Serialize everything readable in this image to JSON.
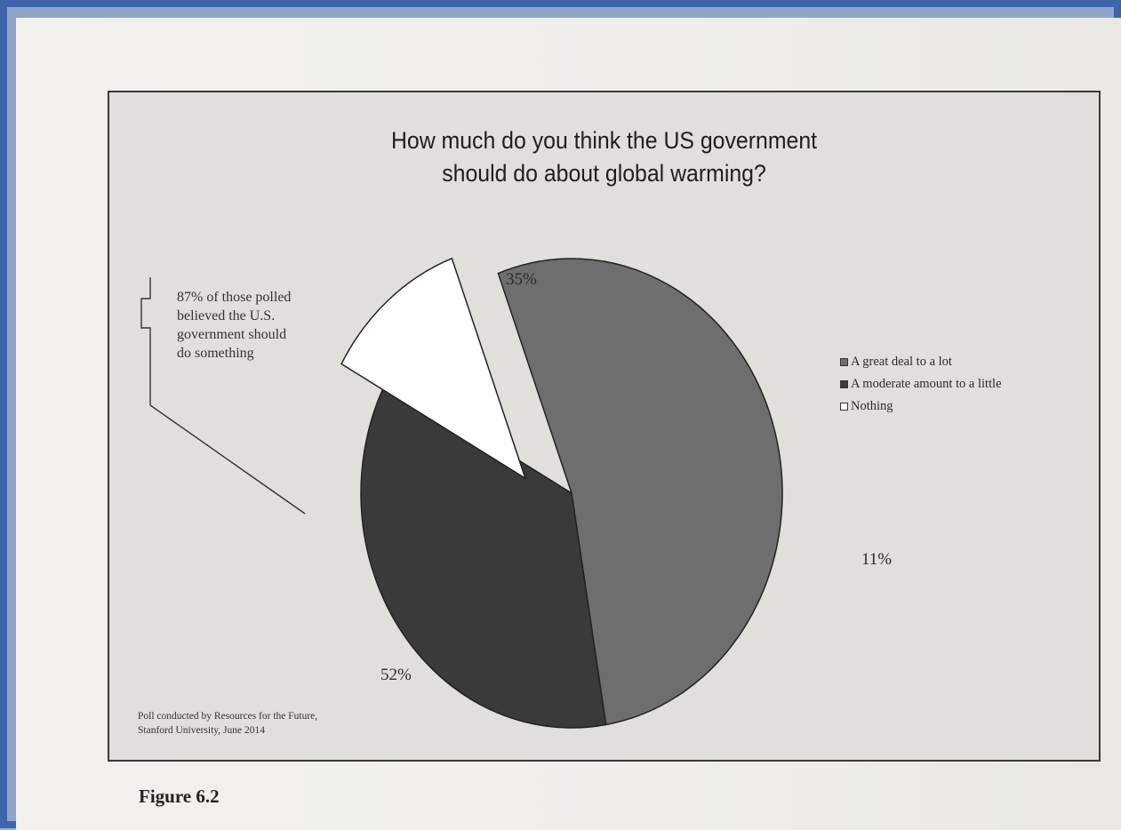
{
  "figure_label": "Figure 6.2",
  "chart_data": {
    "type": "pie",
    "title": [
      "How much do you think the US government",
      "should do about global warming?"
    ],
    "slices": [
      {
        "name": "A great deal to a lot",
        "value": 52,
        "label": "52%",
        "color": "#6e6e6e",
        "exploded": false
      },
      {
        "name": "A moderate amount to a little",
        "value": 35,
        "label": "35%",
        "color": "#3a3a3a",
        "exploded": false
      },
      {
        "name": "Nothing",
        "value": 11,
        "label": "11%",
        "color": "#ffffff",
        "exploded": true
      }
    ],
    "legend_position": "right",
    "annotation": [
      "87% of those polled",
      "believed the U.S.",
      "government should",
      "do something"
    ],
    "source": [
      "Poll conducted by Resources for the Future,",
      "Stanford University, June 2014"
    ]
  }
}
